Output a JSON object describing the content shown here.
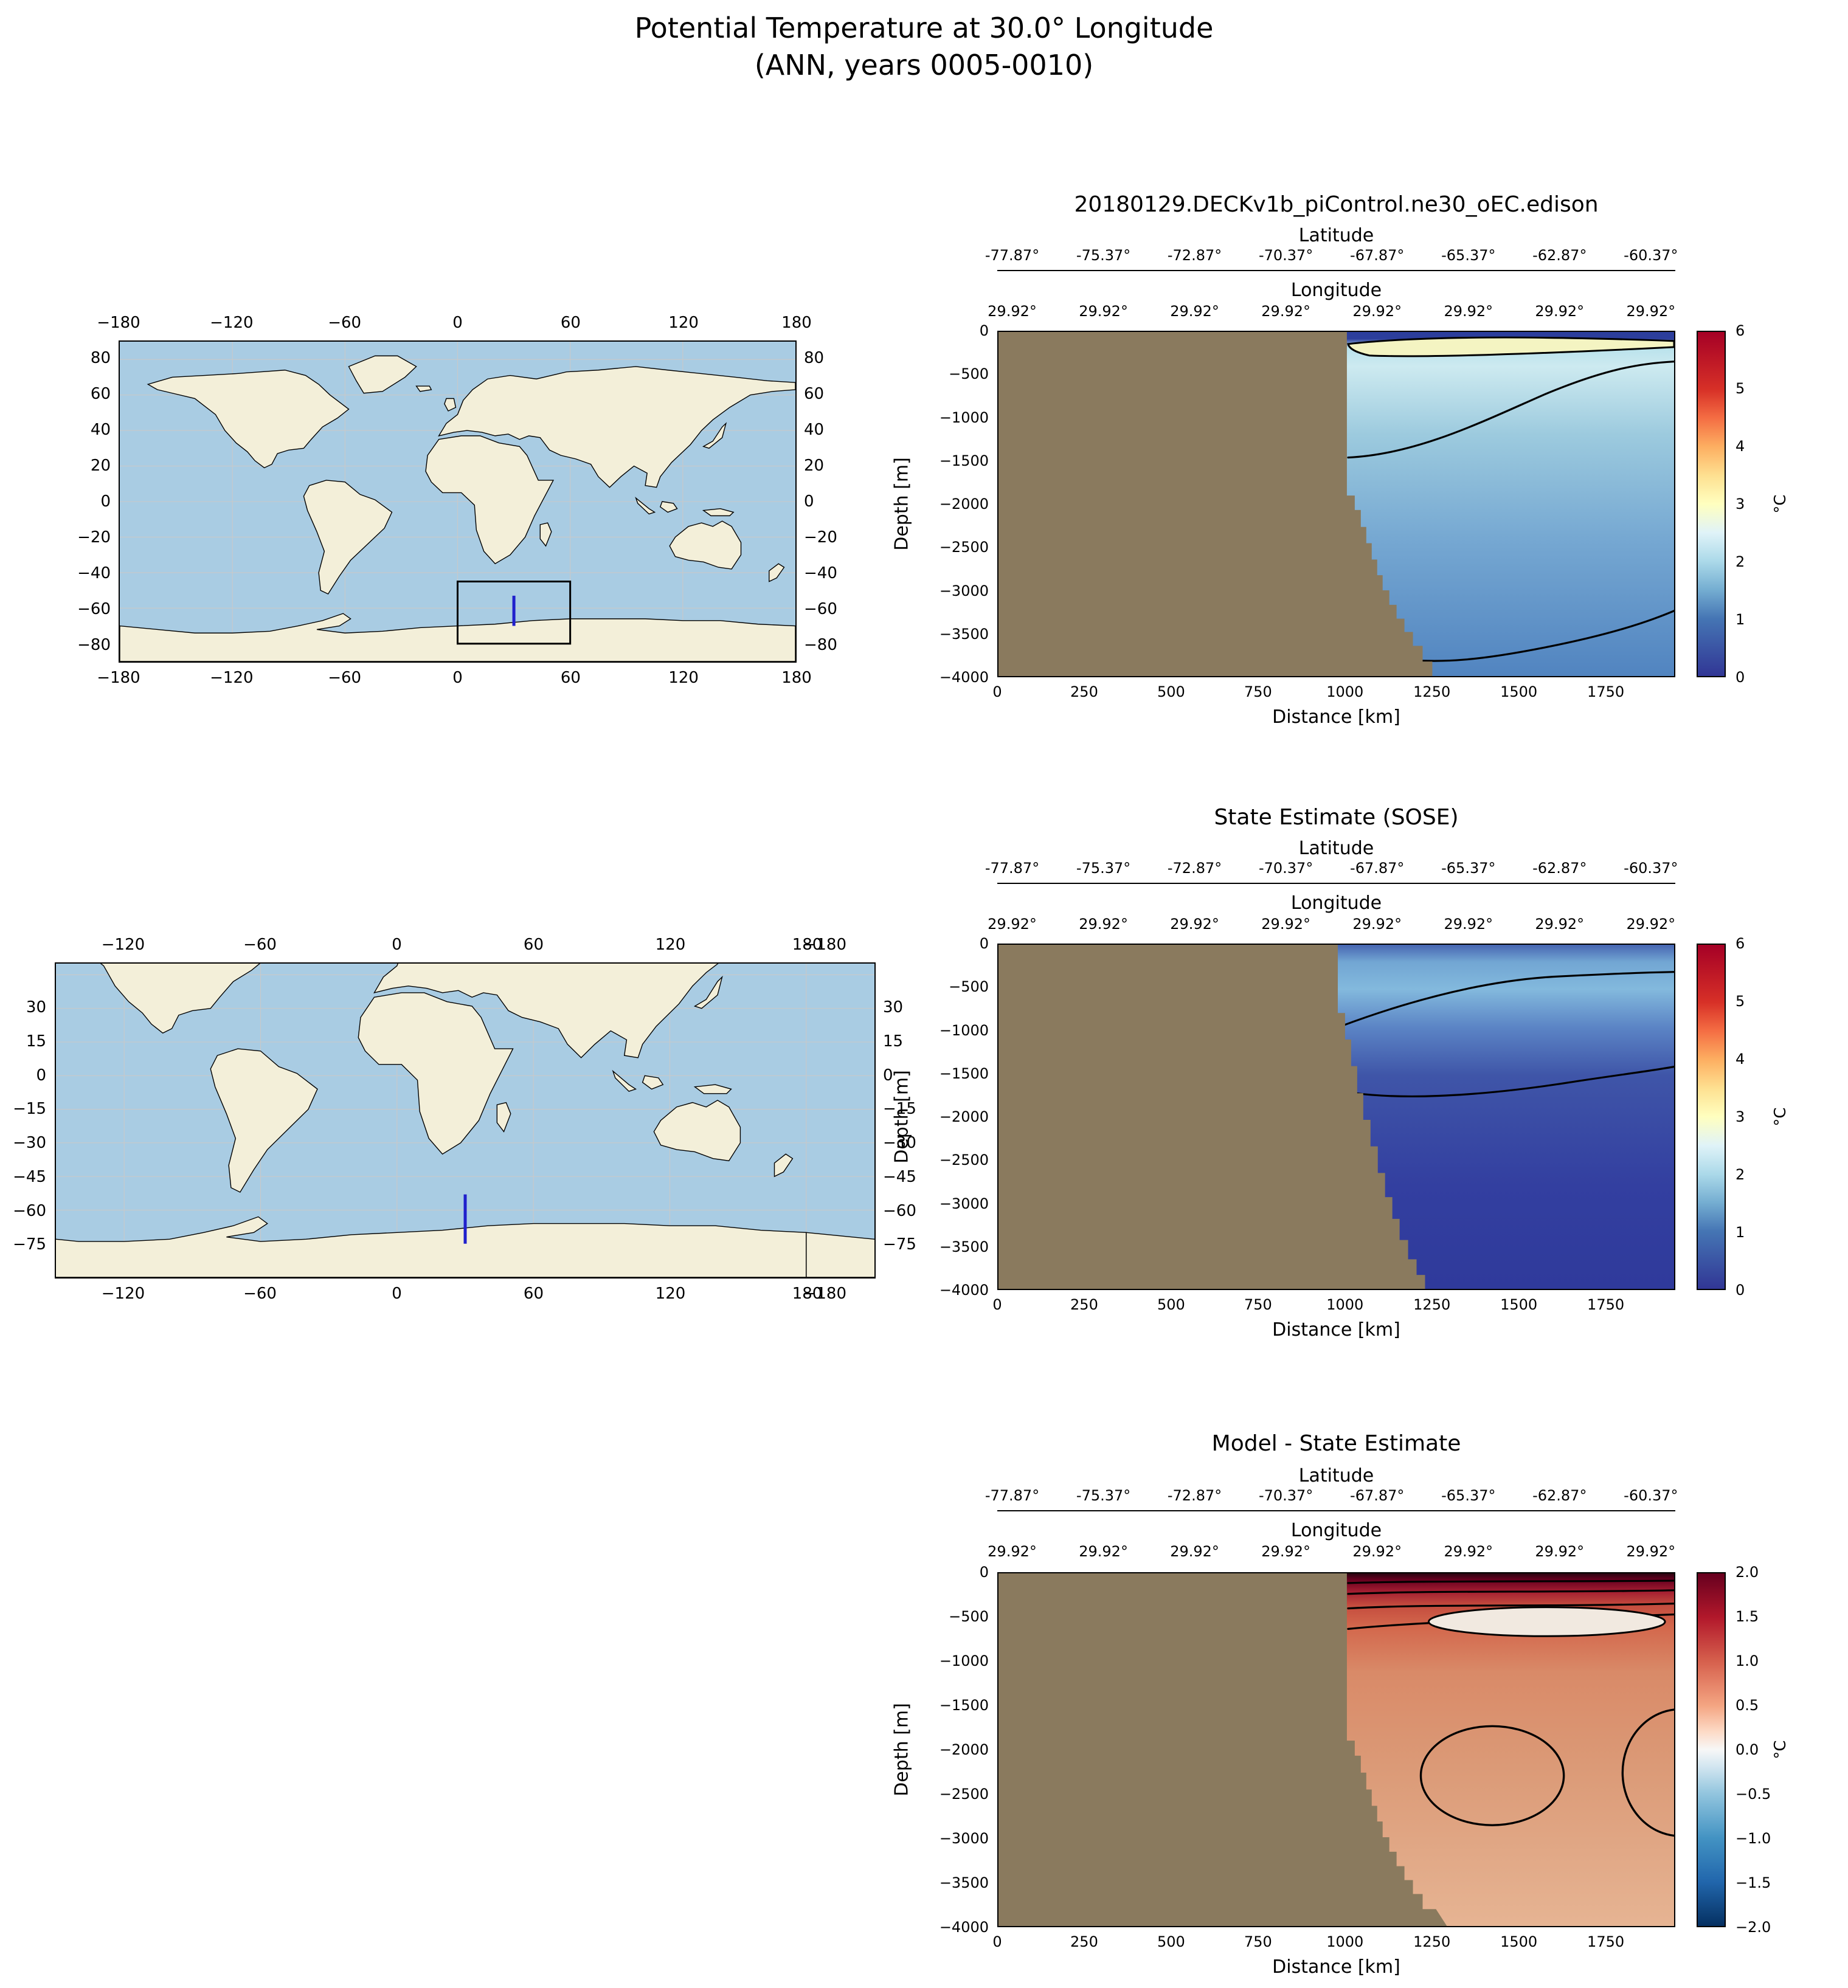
{
  "figure": {
    "title_line1": "Potential Temperature at 30.0° Longitude",
    "title_line2": "(ANN, years 0005-0010)"
  },
  "colors": {
    "section_land": "#8a7a5e",
    "map_ocean": "#a9cce3",
    "map_land": "#f3efd9",
    "transect_line": "#2020cc",
    "temp_colormap": "RdYlBu_r",
    "diff_colormap": "RdBu_r"
  },
  "map_top": {
    "x_ticks": [
      "−180",
      "−120",
      "−60",
      "0",
      "60",
      "120",
      "180"
    ],
    "y_ticks": [
      "80",
      "60",
      "40",
      "20",
      "0",
      "−20",
      "−40",
      "−60",
      "−80"
    ]
  },
  "map_bottom": {
    "x_ticks": [
      "−120",
      "−60",
      "0",
      "60",
      "120",
      "180",
      "−180"
    ],
    "y_ticks": [
      "30",
      "15",
      "0",
      "−15",
      "−30",
      "−45",
      "−60",
      "−75"
    ]
  },
  "panels": [
    {
      "title": "20180129.DECKv1b_piControl.ne30_oEC.edison",
      "lat_label": "Latitude",
      "lat_ticks": [
        "-77.87°",
        "-75.37°",
        "-72.87°",
        "-70.37°",
        "-67.87°",
        "-65.37°",
        "-62.87°",
        "-60.37°"
      ],
      "lon_label": "Longitude",
      "lon_ticks": [
        "29.92°",
        "29.92°",
        "29.92°",
        "29.92°",
        "29.92°",
        "29.92°",
        "29.92°",
        "29.92°"
      ],
      "ylabel": "Depth [m]",
      "y_ticks": [
        "0",
        "−500",
        "−1000",
        "−1500",
        "−2000",
        "−2500",
        "−3000",
        "−3500",
        "−4000"
      ],
      "xlabel": "Distance [km]",
      "x_ticks": [
        "0",
        "250",
        "500",
        "750",
        "1000",
        "1250",
        "1500",
        "1750"
      ],
      "cbar_ticks": [
        "6",
        "5",
        "4",
        "3",
        "2",
        "1",
        "0"
      ],
      "cbar_label": "°C"
    },
    {
      "title": "State Estimate (SOSE)",
      "lat_label": "Latitude",
      "lat_ticks": [
        "-77.87°",
        "-75.37°",
        "-72.87°",
        "-70.37°",
        "-67.87°",
        "-65.37°",
        "-62.87°",
        "-60.37°"
      ],
      "lon_label": "Longitude",
      "lon_ticks": [
        "29.92°",
        "29.92°",
        "29.92°",
        "29.92°",
        "29.92°",
        "29.92°",
        "29.92°",
        "29.92°"
      ],
      "ylabel": "Depth [m]",
      "y_ticks": [
        "0",
        "−500",
        "−1000",
        "−1500",
        "−2000",
        "−2500",
        "−3000",
        "−3500",
        "−4000"
      ],
      "xlabel": "Distance [km]",
      "x_ticks": [
        "0",
        "250",
        "500",
        "750",
        "1000",
        "1250",
        "1500",
        "1750"
      ],
      "cbar_ticks": [
        "6",
        "5",
        "4",
        "3",
        "2",
        "1",
        "0"
      ],
      "cbar_label": "°C"
    },
    {
      "title": "Model - State Estimate",
      "lat_label": "Latitude",
      "lat_ticks": [
        "-77.87°",
        "-75.37°",
        "-72.87°",
        "-70.37°",
        "-67.87°",
        "-65.37°",
        "-62.87°",
        "-60.37°"
      ],
      "lon_label": "Longitude",
      "lon_ticks": [
        "29.92°",
        "29.92°",
        "29.92°",
        "29.92°",
        "29.92°",
        "29.92°",
        "29.92°",
        "29.92°"
      ],
      "ylabel": "Depth [m]",
      "y_ticks": [
        "0",
        "−500",
        "−1000",
        "−1500",
        "−2000",
        "−2500",
        "−3000",
        "−3500",
        "−4000"
      ],
      "xlabel": "Distance [km]",
      "x_ticks": [
        "0",
        "250",
        "500",
        "750",
        "1000",
        "1250",
        "1500",
        "1750"
      ],
      "cbar_ticks": [
        "2.0",
        "1.5",
        "1.0",
        "0.5",
        "0.0",
        "−0.5",
        "−1.0",
        "−1.5",
        "−2.0"
      ],
      "cbar_label": "°C"
    }
  ],
  "chart_data": [
    {
      "type": "heatmap",
      "title": "20180129.DECKv1b_piControl.ne30_oEC.edison",
      "xlabel": "Distance [km]",
      "ylabel": "Depth [m]",
      "xlim": [
        0,
        1950
      ],
      "ylim": [
        -4000,
        0
      ],
      "secondary_x_axes": {
        "latitude_deg": [
          -77.87,
          -75.37,
          -72.87,
          -70.37,
          -67.87,
          -65.37,
          -62.87,
          -60.37
        ],
        "longitude_deg": [
          29.92,
          29.92,
          29.92,
          29.92,
          29.92,
          29.92,
          29.92,
          29.92
        ]
      },
      "colorbar": {
        "label": "°C",
        "range": [
          0,
          6
        ],
        "colormap": "RdYlBu_r"
      },
      "land_mask": "brown shelf from 0 to ~1000 km at surface, stair-stepping down to ~1250 km at -4000 m",
      "features": [
        "thin cold ~0-0.5°C dark-blue surface layer across the open ocean",
        "warm ~2.5-3°C (cream/yellow) tongue between ~100-300 m east of the shelf",
        "~1-2°C light-blue water mass from ~500 m down to ~3200 m",
        "<1°C below the deep contour near 3200-3700 m"
      ],
      "contour_levels_degC": [
        1,
        2,
        3
      ]
    },
    {
      "type": "heatmap",
      "title": "State Estimate (SOSE)",
      "xlabel": "Distance [km]",
      "ylabel": "Depth [m]",
      "xlim": [
        0,
        1950
      ],
      "ylim": [
        -4000,
        0
      ],
      "secondary_x_axes": {
        "latitude_deg": [
          -77.87,
          -75.37,
          -72.87,
          -70.37,
          -67.87,
          -65.37,
          -62.87,
          -60.37
        ],
        "longitude_deg": [
          29.92,
          29.92,
          29.92,
          29.92,
          29.92,
          29.92,
          29.92,
          29.92
        ]
      },
      "colorbar": {
        "label": "°C",
        "range": [
          0,
          6
        ],
        "colormap": "RdYlBu_r"
      },
      "land_mask": "brown shelf from 0 to ~980 km at surface, stair-stepping down to ~1200 km at -4000 m",
      "features": [
        "~1.5-2°C layer between ~100-900 m east of the shelf bounded by a contour",
        "~1°C contour running near 1200-1700 m",
        "0-0.5°C dark-blue deep water below ~1700 m"
      ],
      "contour_levels_degC": [
        1,
        2
      ]
    },
    {
      "type": "heatmap",
      "title": "Model - State Estimate",
      "xlabel": "Distance [km]",
      "ylabel": "Depth [m]",
      "xlim": [
        0,
        1950
      ],
      "ylim": [
        -4000,
        0
      ],
      "secondary_x_axes": {
        "latitude_deg": [
          -77.87,
          -75.37,
          -72.87,
          -70.37,
          -67.87,
          -65.37,
          -62.87,
          -60.37
        ],
        "longitude_deg": [
          29.92,
          29.92,
          29.92,
          29.92,
          29.92,
          29.92,
          29.92,
          29.92
        ]
      },
      "colorbar": {
        "label": "°C",
        "range": [
          -2,
          2
        ],
        "colormap": "RdBu_r"
      },
      "features": [
        "+1.5 to +2°C (dark red) bias in the upper ~300 m with stacked contours",
        "near-zero (white) lens around 400-600 m between ~1400-1900 km",
        "+0.5 to +1°C warm bias through most of the interior",
        "closed ~+1°C contour ovals near 2000-2700 m"
      ],
      "contour_levels_degC": [
        0,
        0.5,
        1
      ]
    },
    {
      "type": "map",
      "title": "global locator map (top)",
      "extent": {
        "lon": [
          -180,
          180
        ],
        "lat": [
          -90,
          90
        ]
      },
      "region_box": {
        "lon": [
          0,
          60
        ],
        "lat": [
          -80,
          -45
        ]
      },
      "transect": {
        "lon": 30,
        "lat": [
          -53,
          -70
        ]
      }
    },
    {
      "type": "map",
      "title": "regional locator map (middle)",
      "extent": {
        "lon": [
          -150,
          210
        ],
        "lat": [
          -90,
          50
        ]
      },
      "transect": {
        "lon": 30,
        "lat": [
          -53,
          -75
        ]
      }
    }
  ]
}
